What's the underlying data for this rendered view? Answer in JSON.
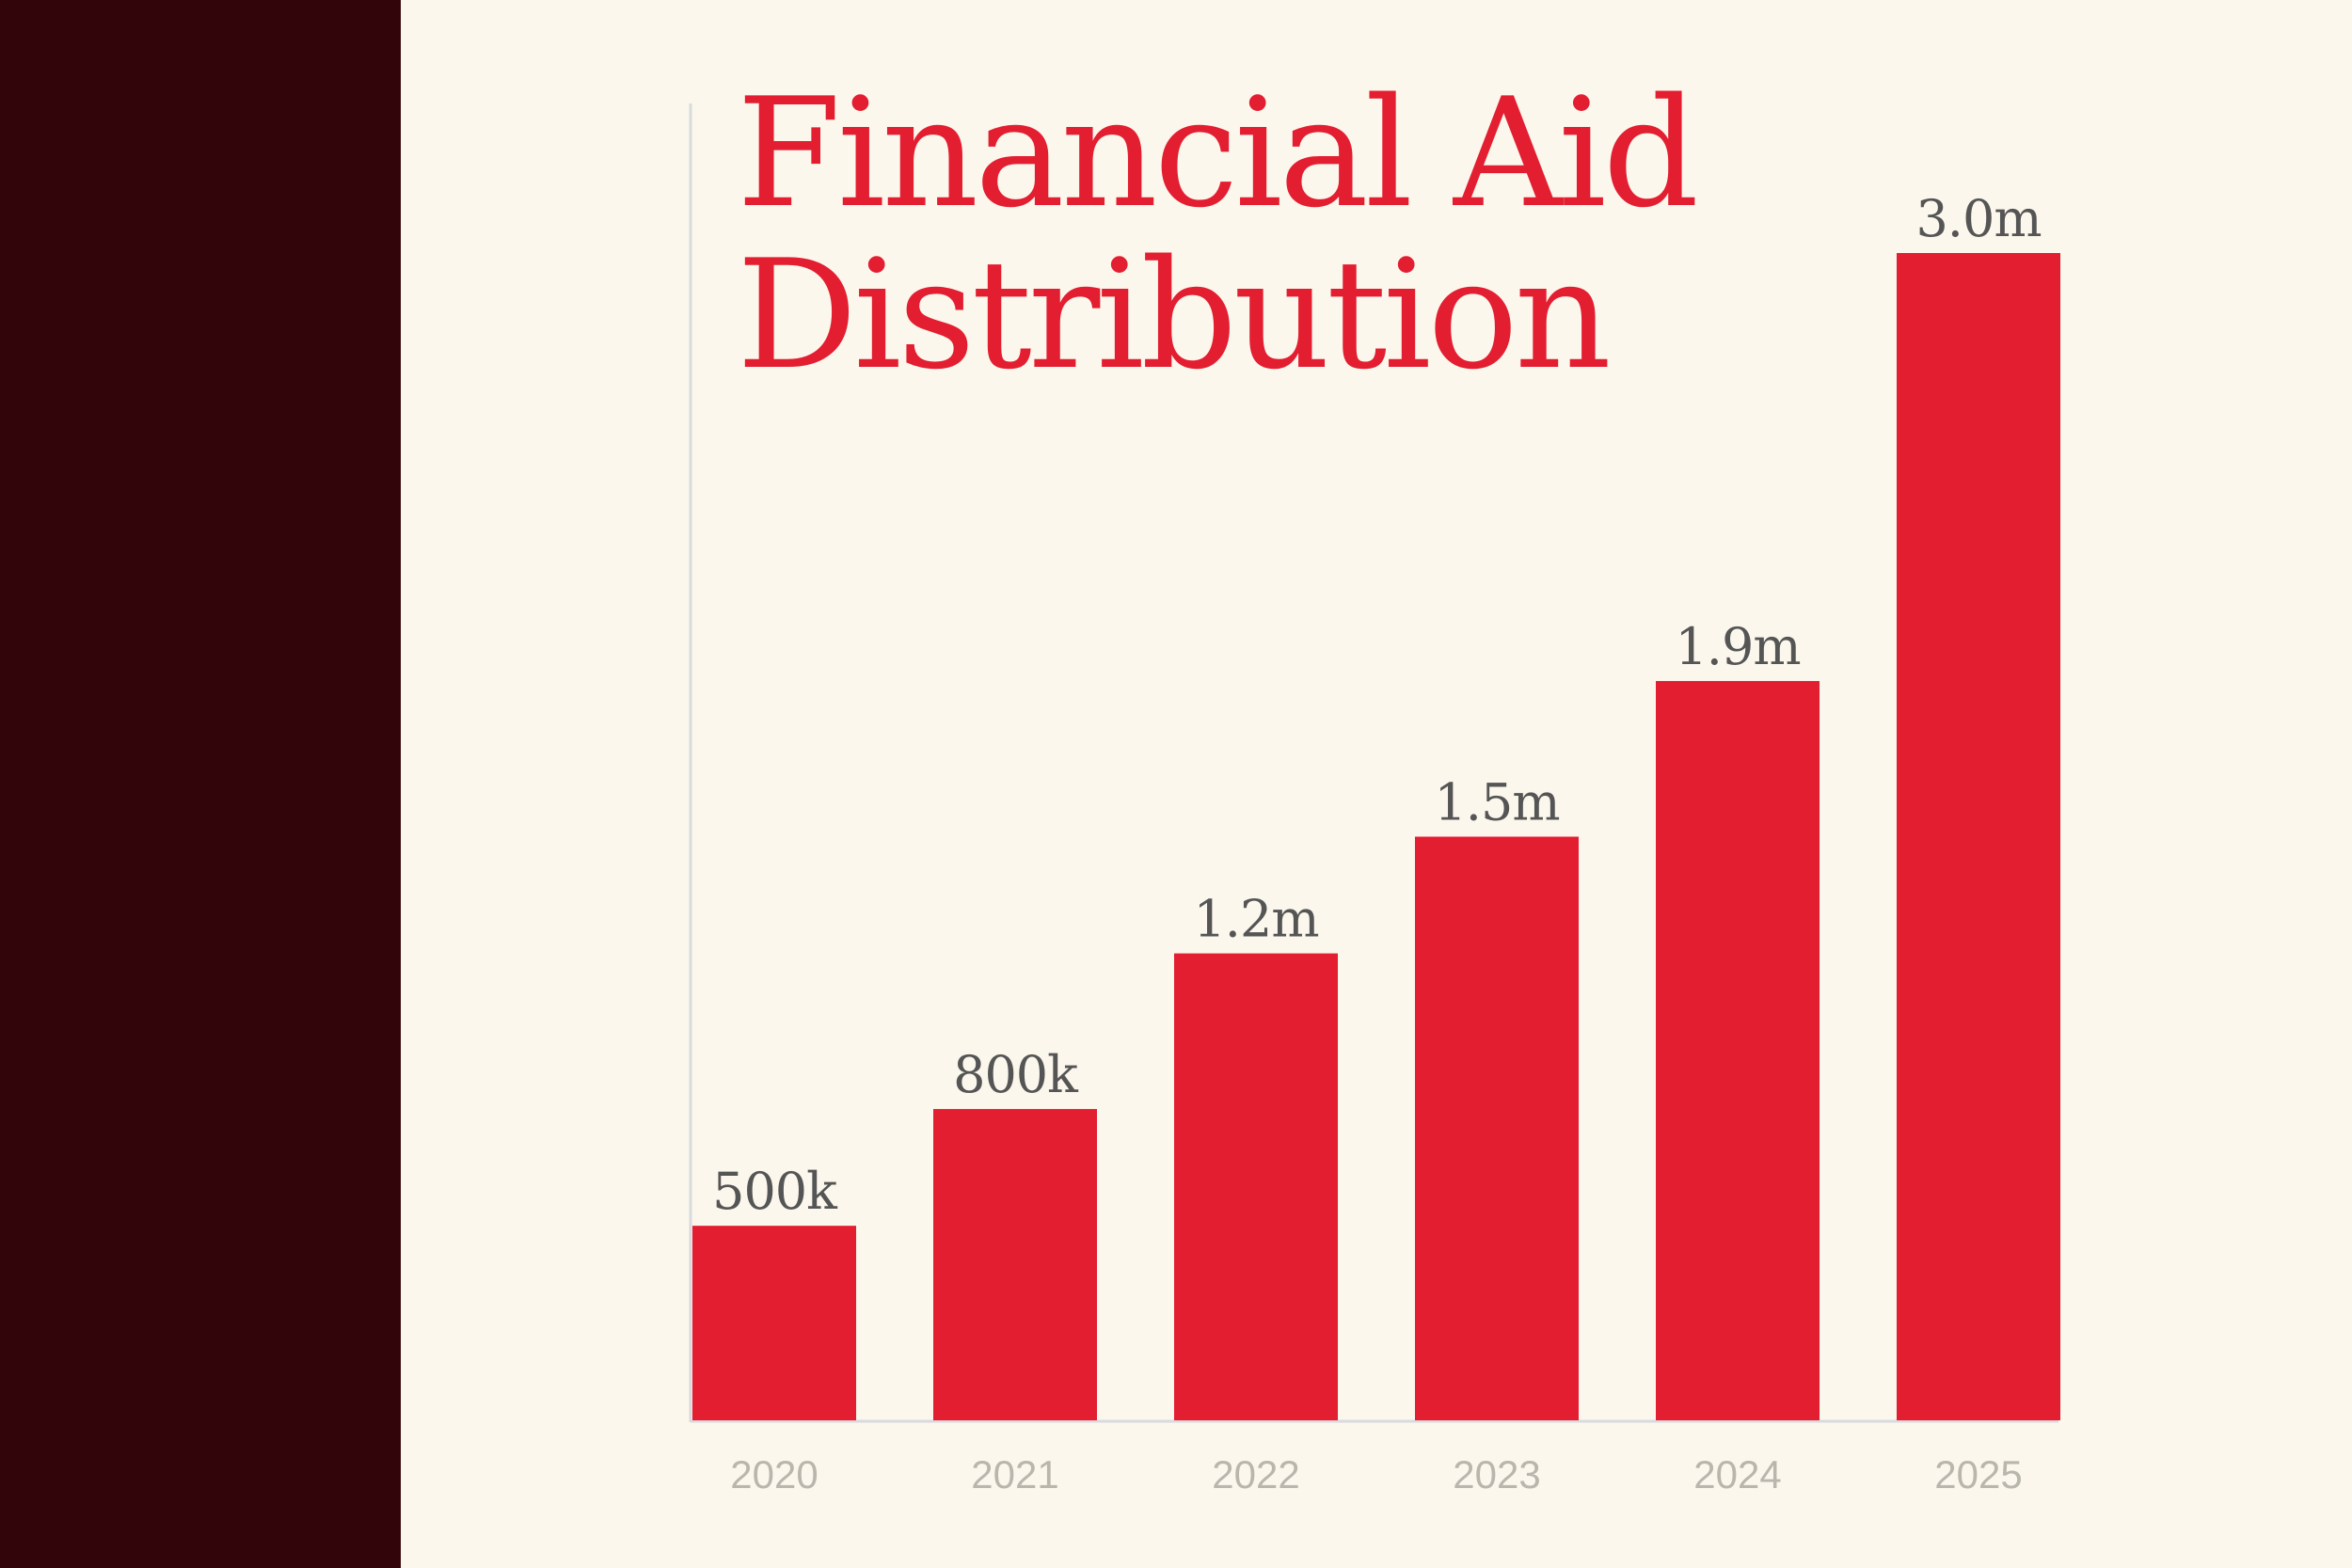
{
  "colors": {
    "background": "#fbf7ec",
    "side_panel": "#32050a",
    "bar": "#e31e31",
    "title": "#e31e31",
    "value_label": "#555555",
    "category_label": "#b9b6ad",
    "axis": "#d8dade"
  },
  "chart_data": {
    "type": "bar",
    "title": [
      "Financial Aid",
      "Distribution"
    ],
    "categories": [
      "2020",
      "2021",
      "2022",
      "2023",
      "2024",
      "2025"
    ],
    "values": [
      500000,
      800000,
      1200000,
      1500000,
      1900000,
      3000000
    ],
    "data_labels": [
      "500k",
      "800k",
      "1.2m",
      "1.5m",
      "1.9m",
      "3.0m"
    ],
    "xlabel": "",
    "ylabel": "",
    "ylim": [
      0,
      3000000
    ],
    "grid": false,
    "legend": "none"
  }
}
